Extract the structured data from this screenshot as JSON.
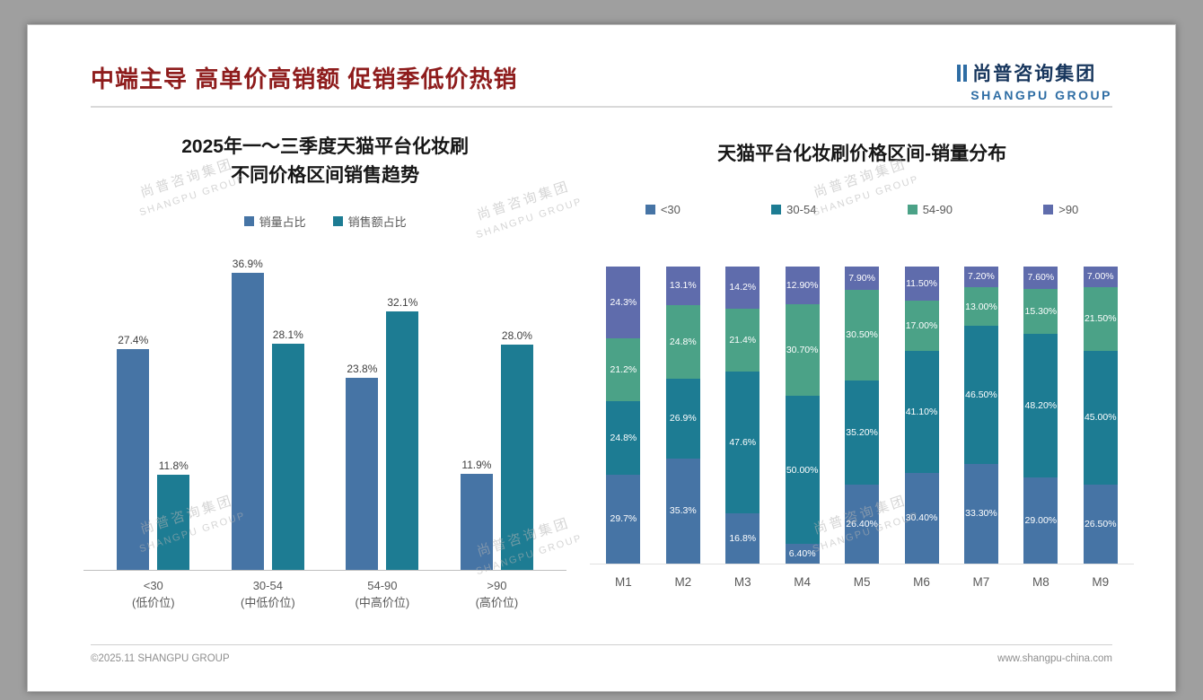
{
  "slide": {
    "title": "中端主导 高单价高销额 促销季低价热销",
    "logo": {
      "cn": "尚普咨询集团",
      "en": "SHANGPU GROUP"
    },
    "watermark": {
      "cn": "尚普咨询集团",
      "en": "SHANGPU GROUP"
    },
    "footer": {
      "copyright": "©2025.11 SHANGPU GROUP",
      "website": "www.shangpu-china.com"
    }
  },
  "theme": {
    "title_color": "#8e1c1c",
    "logo_navy": "#17365d",
    "logo_blue": "#2e6da4",
    "series_blue": "#4674a5",
    "series_teal": "#1d7c93",
    "series_green": "#4ba287",
    "series_slate": "#5f6cac"
  },
  "chart_data": [
    {
      "type": "bar",
      "title_lines": [
        "2025年一～三季度天猫平台化妆刷",
        "不同价格区间销售趋势"
      ],
      "categories": [
        "<30",
        "30-54",
        "54-90",
        ">90"
      ],
      "category_sublabels": [
        "(低价位)",
        "(中低价位)",
        "(中高价位)",
        "(高价位)"
      ],
      "series": [
        {
          "name": "销量占比",
          "color": "#4674a5",
          "values": [
            27.4,
            36.9,
            23.8,
            11.9
          ],
          "labels": [
            "27.4%",
            "36.9%",
            "23.8%",
            "11.9%"
          ]
        },
        {
          "name": "销售额占比",
          "color": "#1d7c93",
          "values": [
            11.8,
            28.1,
            32.1,
            28.0
          ],
          "labels": [
            "11.8%",
            "28.1%",
            "32.1%",
            "28.0%"
          ]
        }
      ],
      "ylim": [
        0,
        40
      ],
      "grid": false,
      "legend_position": "top"
    },
    {
      "type": "stacked-bar",
      "title": "天猫平台化妆刷价格区间-销量分布",
      "categories": [
        "M1",
        "M2",
        "M3",
        "M4",
        "M5",
        "M6",
        "M7",
        "M8",
        "M9"
      ],
      "stack_total": 100,
      "series": [
        {
          "name": "<30",
          "color": "#4674a5",
          "values": [
            29.7,
            35.3,
            16.8,
            6.4,
            26.4,
            30.4,
            33.3,
            29.0,
            26.5
          ],
          "labels": [
            "29.7%",
            "35.3%",
            "16.8%",
            "6.40%",
            "26.40%",
            "30.40%",
            "33.30%",
            "29.00%",
            "26.50%"
          ]
        },
        {
          "name": "30-54",
          "color": "#1d7c93",
          "values": [
            24.8,
            26.9,
            47.6,
            50.0,
            35.2,
            41.1,
            46.5,
            48.2,
            45.0
          ],
          "labels": [
            "24.8%",
            "26.9%",
            "47.6%",
            "50.00%",
            "35.20%",
            "41.10%",
            "46.50%",
            "48.20%",
            "45.00%"
          ]
        },
        {
          "name": "54-90",
          "color": "#4ba287",
          "values": [
            21.2,
            24.8,
            21.4,
            30.7,
            30.5,
            17.0,
            13.0,
            15.3,
            21.5
          ],
          "labels": [
            "21.2%",
            "24.8%",
            "21.4%",
            "30.70%",
            "30.50%",
            "17.00%",
            "13.00%",
            "15.30%",
            "21.50%"
          ]
        },
        {
          "name": ">90",
          "color": "#5f6cac",
          "values": [
            24.3,
            13.1,
            14.2,
            12.9,
            7.9,
            11.5,
            7.2,
            7.6,
            7.0
          ],
          "labels": [
            "24.3%",
            "13.1%",
            "14.2%",
            "12.90%",
            "7.90%",
            "11.50%",
            "7.20%",
            "7.60%",
            "7.00%"
          ]
        }
      ],
      "ylim": [
        0,
        100
      ],
      "grid": false,
      "legend_position": "top"
    }
  ]
}
